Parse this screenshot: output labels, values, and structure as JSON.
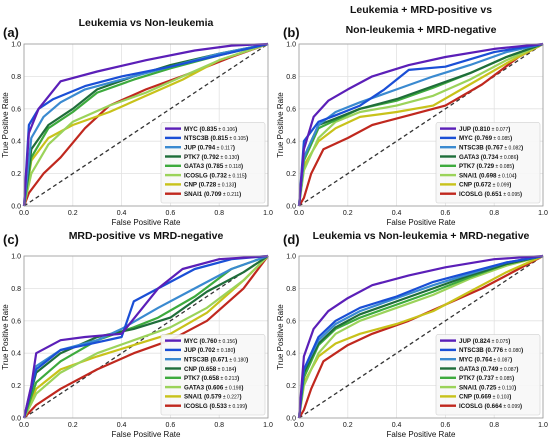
{
  "chart_data": [
    {
      "type": "line",
      "panel_label": "(a)",
      "title": [
        "Leukemia vs Non-leukemia"
      ],
      "xlabel": "False Positive Rate",
      "ylabel": "True Positive Rate",
      "xlim": [
        0,
        1
      ],
      "ylim": [
        0,
        1
      ],
      "ticks": [
        "0.0",
        "0.2",
        "0.4",
        "0.6",
        "0.8",
        "1.0"
      ],
      "grid": true,
      "legend_position": "bottom-right",
      "series": [
        {
          "name": "MYC",
          "auc": "0.835",
          "sd": "± 0.106",
          "color": "#5b1fb8",
          "x": [
            0,
            0.02,
            0.06,
            0.15,
            0.3,
            0.5,
            0.7,
            0.85,
            1.0
          ],
          "y": [
            0,
            0.45,
            0.6,
            0.77,
            0.83,
            0.9,
            0.96,
            0.99,
            1.0
          ]
        },
        {
          "name": "NTSC3B",
          "auc": "0.815",
          "sd": "± 0.105",
          "color": "#1a4fd6",
          "x": [
            0,
            0.02,
            0.06,
            0.12,
            0.25,
            0.4,
            0.6,
            0.8,
            1.0
          ],
          "y": [
            0,
            0.5,
            0.6,
            0.66,
            0.74,
            0.8,
            0.86,
            0.93,
            1.0
          ]
        },
        {
          "name": "JUP",
          "auc": "0.794",
          "sd": "± 0.117",
          "color": "#3a8ad0",
          "x": [
            0,
            0.03,
            0.08,
            0.15,
            0.25,
            0.4,
            0.6,
            0.8,
            1.0
          ],
          "y": [
            0,
            0.42,
            0.55,
            0.64,
            0.72,
            0.78,
            0.86,
            0.94,
            1.0
          ]
        },
        {
          "name": "PTK7",
          "auc": "0.792",
          "sd": "± 0.130",
          "color": "#1f6e3a",
          "x": [
            0,
            0.03,
            0.1,
            0.2,
            0.3,
            0.45,
            0.6,
            0.8,
            1.0
          ],
          "y": [
            0,
            0.35,
            0.5,
            0.6,
            0.72,
            0.8,
            0.87,
            0.94,
            1.0
          ]
        },
        {
          "name": "GATA3",
          "auc": "0.785",
          "sd": "± 0.118",
          "color": "#3daa3d",
          "x": [
            0,
            0.03,
            0.1,
            0.2,
            0.3,
            0.45,
            0.6,
            0.8,
            1.0
          ],
          "y": [
            0,
            0.3,
            0.48,
            0.58,
            0.7,
            0.78,
            0.85,
            0.93,
            1.0
          ]
        },
        {
          "name": "ICOSLG",
          "auc": "0.732",
          "sd": "± 0.115",
          "color": "#9bd35a",
          "x": [
            0,
            0.03,
            0.1,
            0.2,
            0.35,
            0.5,
            0.65,
            0.8,
            1.0
          ],
          "y": [
            0,
            0.2,
            0.38,
            0.52,
            0.62,
            0.7,
            0.8,
            0.9,
            1.0
          ]
        },
        {
          "name": "CNP",
          "auc": "0.728",
          "sd": "± 0.133",
          "color": "#c8c21a",
          "x": [
            0,
            0.03,
            0.1,
            0.2,
            0.35,
            0.5,
            0.65,
            0.8,
            1.0
          ],
          "y": [
            0,
            0.28,
            0.42,
            0.5,
            0.58,
            0.68,
            0.78,
            0.9,
            1.0
          ]
        },
        {
          "name": "SNAI1",
          "auc": "0.709",
          "sd": "± 0.211",
          "color": "#c0281e",
          "x": [
            0,
            0.02,
            0.08,
            0.15,
            0.25,
            0.35,
            0.5,
            0.7,
            0.85,
            1.0
          ],
          "y": [
            0,
            0.08,
            0.2,
            0.3,
            0.48,
            0.62,
            0.72,
            0.83,
            0.92,
            1.0
          ]
        }
      ]
    },
    {
      "type": "line",
      "panel_label": "(b)",
      "title": [
        "Leukemia + MRD-positive vs",
        "Non-leukemia + MRD-negative"
      ],
      "xlabel": "False Positive Rate",
      "ylabel": "True Positive Rate",
      "xlim": [
        0,
        1
      ],
      "ylim": [
        0,
        1
      ],
      "ticks": [
        "0.0",
        "0.2",
        "0.4",
        "0.6",
        "0.8",
        "1.0"
      ],
      "grid": true,
      "legend_position": "bottom-right",
      "series": [
        {
          "name": "JUP",
          "auc": "0.810",
          "sd": "± 0.077",
          "color": "#5b1fb8",
          "x": [
            0,
            0.02,
            0.06,
            0.12,
            0.2,
            0.3,
            0.45,
            0.6,
            0.8,
            1.0
          ],
          "y": [
            0,
            0.35,
            0.55,
            0.65,
            0.72,
            0.8,
            0.87,
            0.92,
            0.97,
            1.0
          ]
        },
        {
          "name": "MYC",
          "auc": "0.769",
          "sd": "± 0.085",
          "color": "#1a4fd6",
          "x": [
            0,
            0.02,
            0.08,
            0.15,
            0.25,
            0.35,
            0.45,
            0.6,
            0.8,
            1.0
          ],
          "y": [
            0,
            0.4,
            0.52,
            0.56,
            0.62,
            0.72,
            0.84,
            0.86,
            0.95,
            1.0
          ]
        },
        {
          "name": "NTSC3B",
          "auc": "0.767",
          "sd": "± 0.082",
          "color": "#3a8ad0",
          "x": [
            0,
            0.02,
            0.08,
            0.15,
            0.25,
            0.4,
            0.55,
            0.7,
            0.85,
            1.0
          ],
          "y": [
            0,
            0.3,
            0.5,
            0.58,
            0.64,
            0.72,
            0.8,
            0.87,
            0.95,
            1.0
          ]
        },
        {
          "name": "GATA3",
          "auc": "0.734",
          "sd": "± 0.086",
          "color": "#1f6e3a",
          "x": [
            0,
            0.02,
            0.08,
            0.15,
            0.25,
            0.4,
            0.55,
            0.7,
            0.85,
            1.0
          ],
          "y": [
            0,
            0.3,
            0.5,
            0.54,
            0.6,
            0.66,
            0.74,
            0.82,
            0.92,
            1.0
          ]
        },
        {
          "name": "PTK7",
          "auc": "0.729",
          "sd": "± 0.085",
          "color": "#3daa3d",
          "x": [
            0,
            0.02,
            0.08,
            0.15,
            0.25,
            0.4,
            0.55,
            0.7,
            0.85,
            1.0
          ],
          "y": [
            0,
            0.28,
            0.48,
            0.53,
            0.6,
            0.65,
            0.73,
            0.82,
            0.92,
            1.0
          ]
        },
        {
          "name": "SNAI1",
          "auc": "0.698",
          "sd": "± 0.104",
          "color": "#9bd35a",
          "x": [
            0,
            0.02,
            0.08,
            0.15,
            0.25,
            0.4,
            0.55,
            0.7,
            0.85,
            1.0
          ],
          "y": [
            0,
            0.22,
            0.42,
            0.52,
            0.58,
            0.62,
            0.68,
            0.78,
            0.9,
            1.0
          ]
        },
        {
          "name": "CNP",
          "auc": "0.672",
          "sd": "± 0.099",
          "color": "#c8c21a",
          "x": [
            0,
            0.02,
            0.08,
            0.15,
            0.25,
            0.4,
            0.55,
            0.7,
            0.85,
            1.0
          ],
          "y": [
            0,
            0.25,
            0.4,
            0.48,
            0.55,
            0.58,
            0.62,
            0.75,
            0.88,
            1.0
          ]
        },
        {
          "name": "ICOSLG",
          "auc": "0.651",
          "sd": "± 0.095",
          "color": "#c0281e",
          "x": [
            0,
            0.02,
            0.05,
            0.1,
            0.2,
            0.3,
            0.45,
            0.6,
            0.75,
            0.9,
            1.0
          ],
          "y": [
            0,
            0.05,
            0.2,
            0.35,
            0.42,
            0.5,
            0.56,
            0.62,
            0.75,
            0.92,
            1.0
          ]
        }
      ]
    },
    {
      "type": "line",
      "panel_label": "(c)",
      "title": [
        "MRD-positive vs MRD-negative"
      ],
      "xlabel": "False Positive Rate",
      "ylabel": "True Positive Rate",
      "xlim": [
        0,
        1
      ],
      "ylim": [
        0,
        1
      ],
      "ticks": [
        "0.0",
        "0.2",
        "0.4",
        "0.6",
        "0.8",
        "1.0"
      ],
      "grid": true,
      "legend_position": "bottom-right",
      "series": [
        {
          "name": "MYC",
          "auc": "0.760",
          "sd": "± 0.156",
          "color": "#5b1fb8",
          "x": [
            0,
            0.03,
            0.05,
            0.15,
            0.25,
            0.4,
            0.55,
            0.65,
            0.8,
            1.0
          ],
          "y": [
            0,
            0.2,
            0.4,
            0.48,
            0.5,
            0.52,
            0.8,
            0.92,
            0.98,
            1.0
          ]
        },
        {
          "name": "JUP",
          "auc": "0.702",
          "sd": "± 0.180",
          "color": "#1a4fd6",
          "x": [
            0,
            0.05,
            0.15,
            0.25,
            0.4,
            0.45,
            0.55,
            0.7,
            0.85,
            1.0
          ],
          "y": [
            0,
            0.3,
            0.42,
            0.45,
            0.5,
            0.72,
            0.8,
            0.92,
            0.98,
            1.0
          ]
        },
        {
          "name": "NTSC3B",
          "auc": "0.671",
          "sd": "± 0.180",
          "color": "#3a8ad0",
          "x": [
            0,
            0.05,
            0.15,
            0.3,
            0.4,
            0.55,
            0.7,
            0.85,
            1.0
          ],
          "y": [
            0,
            0.32,
            0.42,
            0.48,
            0.55,
            0.68,
            0.8,
            0.92,
            1.0
          ]
        },
        {
          "name": "CNP",
          "auc": "0.658",
          "sd": "± 0.184",
          "color": "#1f6e3a",
          "x": [
            0,
            0.05,
            0.15,
            0.3,
            0.45,
            0.6,
            0.75,
            0.9,
            1.0
          ],
          "y": [
            0,
            0.28,
            0.4,
            0.5,
            0.55,
            0.62,
            0.78,
            0.9,
            1.0
          ]
        },
        {
          "name": "PTK7",
          "auc": "0.658",
          "sd": "± 0.213",
          "color": "#3daa3d",
          "x": [
            0,
            0.05,
            0.15,
            0.3,
            0.45,
            0.55,
            0.7,
            0.85,
            1.0
          ],
          "y": [
            0,
            0.22,
            0.35,
            0.48,
            0.56,
            0.62,
            0.75,
            0.92,
            1.0
          ]
        },
        {
          "name": "GATA3",
          "auc": "0.606",
          "sd": "± 0.198",
          "color": "#9bd35a",
          "x": [
            0,
            0.05,
            0.15,
            0.3,
            0.45,
            0.6,
            0.75,
            0.9,
            1.0
          ],
          "y": [
            0,
            0.15,
            0.28,
            0.4,
            0.48,
            0.56,
            0.68,
            0.85,
            1.0
          ]
        },
        {
          "name": "SNAI1",
          "auc": "0.579",
          "sd": "± 0.227",
          "color": "#c8c21a",
          "x": [
            0,
            0.05,
            0.15,
            0.3,
            0.45,
            0.6,
            0.75,
            0.9,
            1.0
          ],
          "y": [
            0,
            0.18,
            0.3,
            0.38,
            0.45,
            0.52,
            0.65,
            0.85,
            1.0
          ]
        },
        {
          "name": "ICOSLG",
          "auc": "0.533",
          "sd": "± 0.199",
          "color": "#c0281e",
          "x": [
            0,
            0.05,
            0.15,
            0.3,
            0.45,
            0.6,
            0.75,
            0.9,
            1.0
          ],
          "y": [
            0,
            0.08,
            0.18,
            0.3,
            0.4,
            0.48,
            0.6,
            0.8,
            1.0
          ]
        }
      ]
    },
    {
      "type": "line",
      "panel_label": "(d)",
      "title": [
        "Leukemia vs Non-leukemia + MRD-negative"
      ],
      "xlabel": "False Positive Rate",
      "ylabel": "True Positive Rate",
      "xlim": [
        0,
        1
      ],
      "ylim": [
        0,
        1
      ],
      "ticks": [
        "0.0",
        "0.2",
        "0.4",
        "0.6",
        "0.8",
        "1.0"
      ],
      "grid": true,
      "legend_position": "bottom-right",
      "series": [
        {
          "name": "JUP",
          "auc": "0.824",
          "sd": "± 0.075",
          "color": "#5b1fb8",
          "x": [
            0,
            0.02,
            0.06,
            0.12,
            0.2,
            0.3,
            0.45,
            0.6,
            0.8,
            1.0
          ],
          "y": [
            0,
            0.38,
            0.55,
            0.66,
            0.74,
            0.82,
            0.88,
            0.93,
            0.98,
            1.0
          ]
        },
        {
          "name": "NTSC3B",
          "auc": "0.776",
          "sd": "± 0.080",
          "color": "#1a4fd6",
          "x": [
            0,
            0.02,
            0.08,
            0.15,
            0.25,
            0.4,
            0.55,
            0.7,
            0.85,
            1.0
          ],
          "y": [
            0,
            0.3,
            0.5,
            0.6,
            0.68,
            0.75,
            0.84,
            0.9,
            0.96,
            1.0
          ]
        },
        {
          "name": "MYC",
          "auc": "0.764",
          "sd": "± 0.087",
          "color": "#3a8ad0",
          "x": [
            0,
            0.02,
            0.08,
            0.15,
            0.25,
            0.4,
            0.55,
            0.7,
            0.85,
            1.0
          ],
          "y": [
            0,
            0.3,
            0.48,
            0.58,
            0.66,
            0.74,
            0.82,
            0.89,
            0.96,
            1.0
          ]
        },
        {
          "name": "GATA3",
          "auc": "0.749",
          "sd": "± 0.087",
          "color": "#1f6e3a",
          "x": [
            0,
            0.02,
            0.08,
            0.15,
            0.25,
            0.4,
            0.55,
            0.7,
            0.85,
            1.0
          ],
          "y": [
            0,
            0.28,
            0.46,
            0.56,
            0.64,
            0.72,
            0.8,
            0.88,
            0.95,
            1.0
          ]
        },
        {
          "name": "PTK7",
          "auc": "0.737",
          "sd": "± 0.085",
          "color": "#3daa3d",
          "x": [
            0,
            0.02,
            0.08,
            0.15,
            0.25,
            0.4,
            0.55,
            0.7,
            0.85,
            1.0
          ],
          "y": [
            0,
            0.25,
            0.45,
            0.55,
            0.62,
            0.7,
            0.78,
            0.87,
            0.95,
            1.0
          ]
        },
        {
          "name": "SNAI1",
          "auc": "0.725",
          "sd": "± 0.110",
          "color": "#9bd35a",
          "x": [
            0,
            0.02,
            0.08,
            0.15,
            0.25,
            0.4,
            0.55,
            0.7,
            0.85,
            1.0
          ],
          "y": [
            0,
            0.2,
            0.4,
            0.52,
            0.6,
            0.68,
            0.76,
            0.86,
            0.94,
            1.0
          ]
        },
        {
          "name": "CNP",
          "auc": "0.669",
          "sd": "± 0.103",
          "color": "#c8c21a",
          "x": [
            0,
            0.02,
            0.08,
            0.15,
            0.25,
            0.4,
            0.55,
            0.7,
            0.85,
            1.0
          ],
          "y": [
            0,
            0.22,
            0.38,
            0.46,
            0.52,
            0.58,
            0.66,
            0.78,
            0.9,
            1.0
          ]
        },
        {
          "name": "ICOSLG",
          "auc": "0.664",
          "sd": "± 0.099",
          "color": "#c0281e",
          "x": [
            0,
            0.02,
            0.05,
            0.1,
            0.2,
            0.3,
            0.45,
            0.6,
            0.75,
            0.9,
            1.0
          ],
          "y": [
            0,
            0.05,
            0.18,
            0.35,
            0.45,
            0.52,
            0.6,
            0.7,
            0.8,
            0.92,
            1.0
          ]
        }
      ]
    }
  ]
}
